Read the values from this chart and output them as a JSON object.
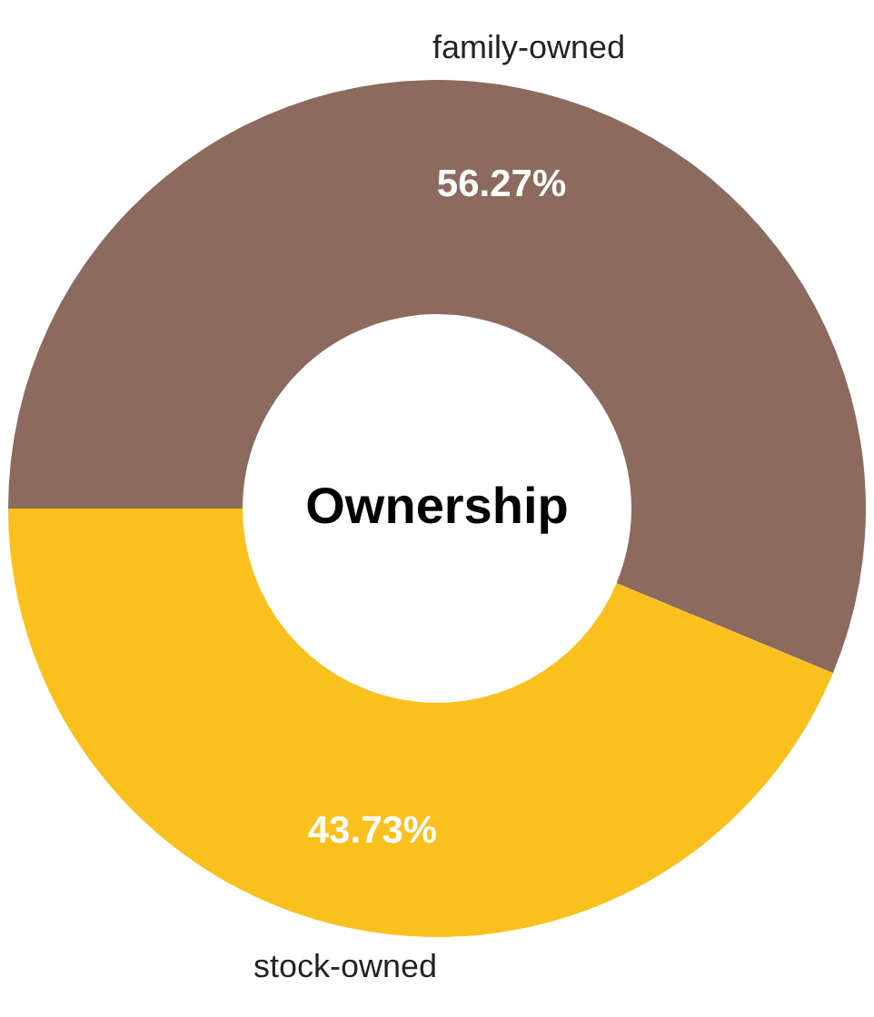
{
  "chart_data": {
    "type": "donut",
    "title": "Ownership",
    "categories": [
      "family-owned",
      "stock-owned"
    ],
    "values": [
      56.27,
      43.73
    ],
    "colors": [
      "#8c6b5e",
      "#f9c01e"
    ],
    "value_labels": [
      "56.27%",
      "43.73%"
    ]
  }
}
